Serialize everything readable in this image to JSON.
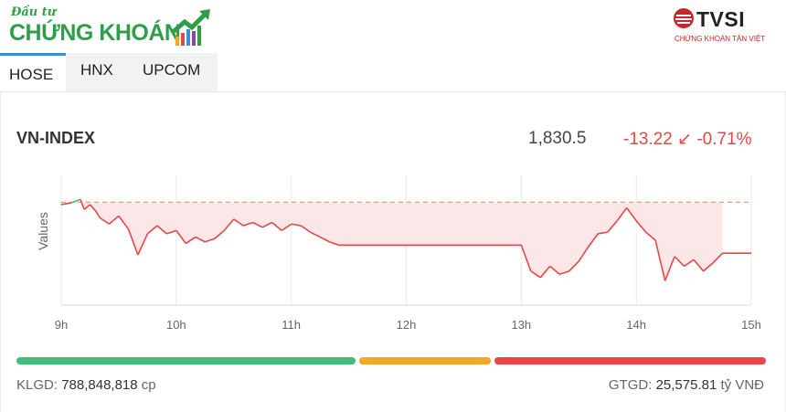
{
  "brand": {
    "top": "Đầu tư",
    "main": "CHỨNG KHOÁN"
  },
  "partner": {
    "name": "TVSI",
    "sub": "CHỨNG KHOÁN TÂN VIỆT"
  },
  "tabs": [
    {
      "label": "HOSE",
      "active": true
    },
    {
      "label": "HNX",
      "active": false
    },
    {
      "label": "UPCOM",
      "active": false
    }
  ],
  "index": {
    "name": "VN-INDEX",
    "value": "1,830.5",
    "change": "-13.22",
    "arrow": "↙",
    "change_pct": "-0.71%"
  },
  "colors": {
    "up": "#3ec07a",
    "down": "#e84545",
    "reference": "#f5a623",
    "accent": "#3b8ed8",
    "fill": "#fbe7e8"
  },
  "chart_data": {
    "type": "line",
    "ylabel": "Values",
    "xlabel": "",
    "x_ticks": [
      "9h",
      "10h",
      "11h",
      "12h",
      "13h",
      "14h",
      "15h"
    ],
    "reference": 1843.72,
    "ylim": [
      1812,
      1852
    ],
    "grid": true,
    "series": [
      {
        "x": [
          "09:00",
          "09:05",
          "09:10",
          "09:12",
          "09:15",
          "09:18",
          "09:20",
          "09:25",
          "09:30",
          "09:35",
          "09:40",
          "09:45",
          "09:50",
          "09:55",
          "10:00",
          "10:05",
          "10:10",
          "10:15",
          "10:20",
          "10:25",
          "10:30",
          "10:35",
          "10:40",
          "10:45",
          "10:50",
          "10:55",
          "11:00",
          "11:05",
          "11:10",
          "11:15",
          "11:20",
          "11:25",
          "11:30",
          "13:00",
          "13:05",
          "13:10",
          "13:15",
          "13:20",
          "13:25",
          "13:30",
          "13:35",
          "13:40",
          "13:45",
          "13:50",
          "13:55",
          "14:00",
          "14:05",
          "14:10",
          "14:15",
          "14:20",
          "14:25",
          "14:30",
          "14:35",
          "14:40",
          "14:45"
        ],
        "values": [
          1843.0,
          1843.5,
          1844.6,
          1841.5,
          1843.0,
          1841.0,
          1839.0,
          1837.0,
          1839.5,
          1835.5,
          1827.5,
          1834.0,
          1836.5,
          1834.0,
          1835.0,
          1831.0,
          1833.0,
          1831.5,
          1832.5,
          1835.0,
          1838.5,
          1836.5,
          1837.5,
          1836.0,
          1837.5,
          1835.0,
          1837.0,
          1836.5,
          1834.5,
          1833.0,
          1831.5,
          1830.5,
          1830.5,
          1830.5,
          1822.5,
          1820.5,
          1824.0,
          1821.5,
          1822.5,
          1825.5,
          1830.0,
          1834.0,
          1834.5,
          1838.0,
          1842.0,
          1838.0,
          1834.5,
          1832.0,
          1819.5,
          1827.0,
          1824.0,
          1826.0,
          1822.5,
          1825.0,
          1828.0
        ]
      }
    ]
  },
  "volume": {
    "label": "KLGD:",
    "value": "788,848,818",
    "unit": "cp"
  },
  "turnover": {
    "label": "GTGD:",
    "value": "25,575.81",
    "unit": "tỷ VNĐ"
  },
  "breadth": {
    "advancers": 0.455,
    "unchanged": 0.18,
    "decliners": 0.365
  }
}
